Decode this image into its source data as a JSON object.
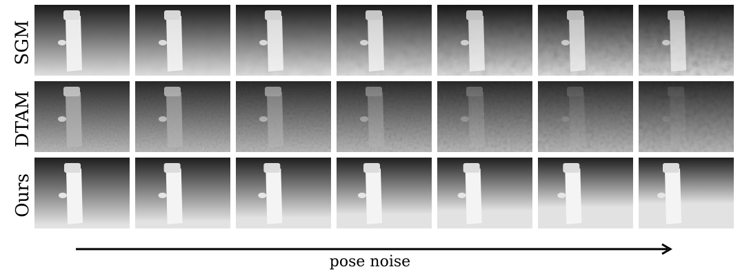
{
  "figure": {
    "rows": [
      {
        "label": "SGM",
        "method": "sgm"
      },
      {
        "label": "DTAM",
        "method": "dtam"
      },
      {
        "label": "Ours",
        "method": "ours"
      }
    ],
    "columns_per_row": 7,
    "axis_label": "pose noise"
  }
}
